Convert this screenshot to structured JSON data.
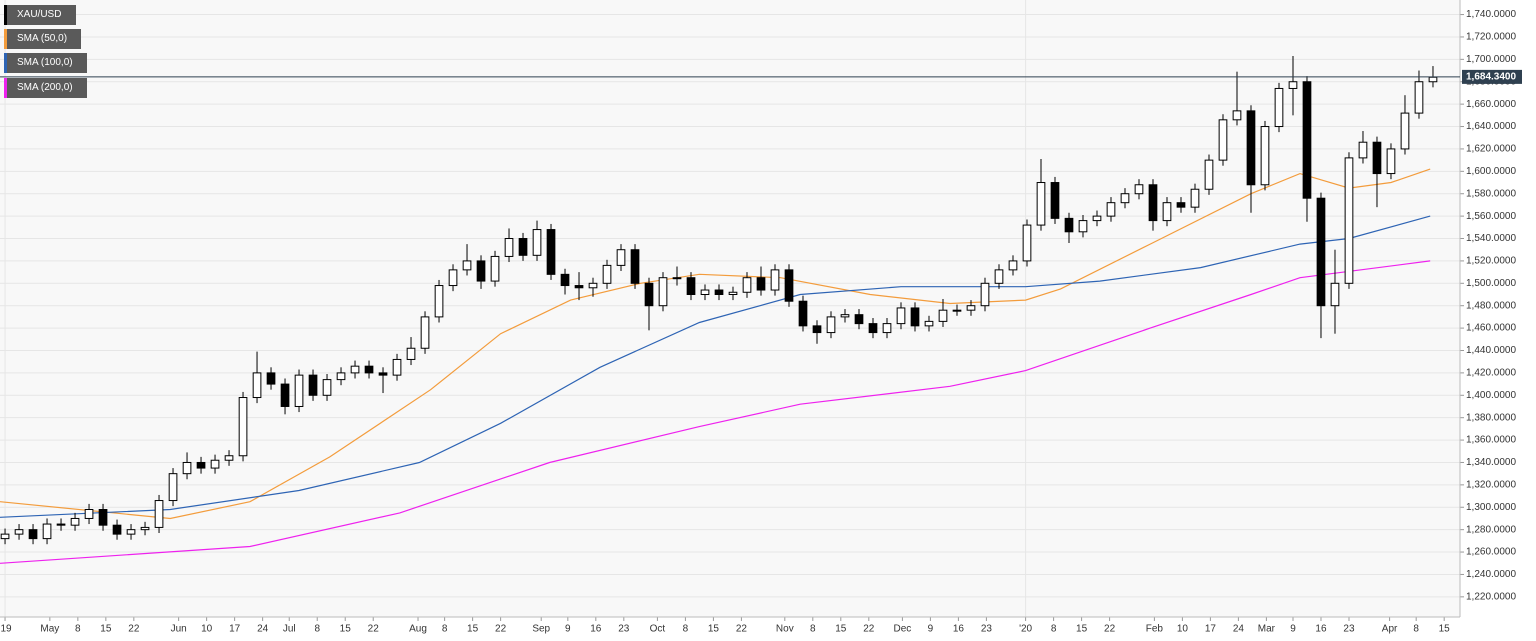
{
  "chart_data": {
    "type": "candlestick",
    "name": "XAU/USD",
    "up_color": "#ffffff",
    "down_color": "#000000",
    "xlim": [
      -0.36,
      103.93
    ],
    "xticks": [
      {
        "value": 0,
        "label": "'19"
      },
      {
        "value": 3.2,
        "label": "May"
      },
      {
        "value": 5.2,
        "label": "8"
      },
      {
        "value": 7.2,
        "label": "15"
      },
      {
        "value": 9.2,
        "label": "22"
      },
      {
        "value": 12.4,
        "label": "Jun"
      },
      {
        "value": 14.4,
        "label": "10"
      },
      {
        "value": 16.4,
        "label": "17"
      },
      {
        "value": 18.4,
        "label": "24"
      },
      {
        "value": 20.3,
        "label": "Jul"
      },
      {
        "value": 22.3,
        "label": "8"
      },
      {
        "value": 24.3,
        "label": "15"
      },
      {
        "value": 26.3,
        "label": "22"
      },
      {
        "value": 29.5,
        "label": "Aug"
      },
      {
        "value": 31.4,
        "label": "8"
      },
      {
        "value": 33.4,
        "label": "15"
      },
      {
        "value": 35.4,
        "label": "22"
      },
      {
        "value": 38.3,
        "label": "Sep"
      },
      {
        "value": 40.2,
        "label": "9"
      },
      {
        "value": 42.2,
        "label": "16"
      },
      {
        "value": 44.2,
        "label": "23"
      },
      {
        "value": 46.6,
        "label": "Oct"
      },
      {
        "value": 48.6,
        "label": "8"
      },
      {
        "value": 50.6,
        "label": "15"
      },
      {
        "value": 52.6,
        "label": "22"
      },
      {
        "value": 55.7,
        "label": "Nov"
      },
      {
        "value": 57.7,
        "label": "8"
      },
      {
        "value": 59.7,
        "label": "15"
      },
      {
        "value": 61.7,
        "label": "22"
      },
      {
        "value": 64.1,
        "label": "Dec"
      },
      {
        "value": 66.1,
        "label": "9"
      },
      {
        "value": 68.1,
        "label": "16"
      },
      {
        "value": 70.1,
        "label": "23"
      },
      {
        "value": 72.9,
        "label": "'20"
      },
      {
        "value": 74.9,
        "label": "8"
      },
      {
        "value": 76.9,
        "label": "15"
      },
      {
        "value": 78.9,
        "label": "22"
      },
      {
        "value": 82.1,
        "label": "Feb"
      },
      {
        "value": 84.1,
        "label": "10"
      },
      {
        "value": 86.1,
        "label": "17"
      },
      {
        "value": 88.1,
        "label": "24"
      },
      {
        "value": 90.1,
        "label": "Mar"
      },
      {
        "value": 92,
        "label": "9"
      },
      {
        "value": 94,
        "label": "16"
      },
      {
        "value": 96,
        "label": "23"
      },
      {
        "value": 98.9,
        "label": "Apr"
      },
      {
        "value": 100.8,
        "label": "8"
      },
      {
        "value": 102.8,
        "label": "15"
      }
    ],
    "ylim": [
      1202,
      1753
    ],
    "yticks": [
      {
        "value": 1220,
        "label": "1,220.0000"
      },
      {
        "value": 1240,
        "label": "1,240.0000"
      },
      {
        "value": 1260,
        "label": "1,260.0000"
      },
      {
        "value": 1280,
        "label": "1,280.0000"
      },
      {
        "value": 1300,
        "label": "1,300.0000"
      },
      {
        "value": 1320,
        "label": "1,320.0000"
      },
      {
        "value": 1340,
        "label": "1,340.0000"
      },
      {
        "value": 1360,
        "label": "1,360.0000"
      },
      {
        "value": 1380,
        "label": "1,380.0000"
      },
      {
        "value": 1400,
        "label": "1,400.0000"
      },
      {
        "value": 1420,
        "label": "1,420.0000"
      },
      {
        "value": 1440,
        "label": "1,440.0000"
      },
      {
        "value": 1460,
        "label": "1,460.0000"
      },
      {
        "value": 1480,
        "label": "1,480.0000"
      },
      {
        "value": 1500,
        "label": "1,500.0000"
      },
      {
        "value": 1520,
        "label": "1,520.0000"
      },
      {
        "value": 1540,
        "label": "1,540.0000"
      },
      {
        "value": 1560,
        "label": "1,560.0000"
      },
      {
        "value": 1580,
        "label": "1,580.0000"
      },
      {
        "value": 1600,
        "label": "1,600.0000"
      },
      {
        "value": 1620,
        "label": "1,620.0000"
      },
      {
        "value": 1640,
        "label": "1,640.0000"
      },
      {
        "value": 1660,
        "label": "1,660.0000"
      },
      {
        "value": 1680,
        "label": "1,680.0000"
      },
      {
        "value": 1700,
        "label": "1,700.0000"
      },
      {
        "value": 1720,
        "label": "1,720.0000"
      },
      {
        "value": 1740,
        "label": "1,740.0000"
      }
    ],
    "grid": true,
    "open": [
      1272,
      1276,
      1280,
      1272,
      1285,
      1284,
      1290,
      1298,
      1284,
      1276,
      1280,
      1282,
      1306,
      1330,
      1340,
      1335,
      1342,
      1346,
      1398,
      1420,
      1410,
      1390,
      1418,
      1400,
      1414,
      1420,
      1426,
      1420,
      1418,
      1432,
      1442,
      1470,
      1498,
      1512,
      1520,
      1502,
      1524,
      1540,
      1525,
      1548,
      1508,
      1498,
      1496,
      1500,
      1516,
      1530,
      1500,
      1480,
      1505,
      1505,
      1490,
      1494,
      1490,
      1492,
      1505,
      1494,
      1512,
      1484,
      1462,
      1456,
      1470,
      1472,
      1464,
      1456,
      1464,
      1478,
      1462,
      1466,
      1476,
      1476,
      1480,
      1500,
      1512,
      1520,
      1552,
      1590,
      1558,
      1546,
      1556,
      1560,
      1572,
      1580,
      1588,
      1556,
      1572,
      1568,
      1584,
      1610,
      1646,
      1654,
      1588,
      1640,
      1674,
      1680,
      1576,
      1480,
      1500,
      1612,
      1626,
      1598,
      1620,
      1652,
      1680
    ],
    "high": [
      1281,
      1285,
      1285,
      1290,
      1290,
      1295,
      1303,
      1303,
      1289,
      1285,
      1287,
      1311,
      1335,
      1349,
      1345,
      1347,
      1351,
      1403,
      1439,
      1425,
      1415,
      1423,
      1423,
      1419,
      1425,
      1431,
      1431,
      1425,
      1437,
      1452,
      1475,
      1503,
      1517,
      1535,
      1525,
      1529,
      1549,
      1545,
      1556,
      1553,
      1513,
      1510,
      1505,
      1521,
      1535,
      1535,
      1505,
      1510,
      1515,
      1510,
      1499,
      1499,
      1497,
      1510,
      1515,
      1517,
      1517,
      1489,
      1467,
      1475,
      1477,
      1477,
      1469,
      1469,
      1483,
      1483,
      1471,
      1486,
      1481,
      1485,
      1505,
      1517,
      1525,
      1557,
      1611,
      1595,
      1563,
      1561,
      1565,
      1577,
      1585,
      1593,
      1593,
      1577,
      1577,
      1589,
      1615,
      1651,
      1689,
      1659,
      1645,
      1679,
      1703,
      1685,
      1581,
      1530,
      1617,
      1636,
      1631,
      1625,
      1668,
      1690,
      1694
    ],
    "low": [
      1267,
      1271,
      1267,
      1267,
      1279,
      1279,
      1285,
      1279,
      1271,
      1271,
      1275,
      1277,
      1301,
      1325,
      1330,
      1330,
      1337,
      1341,
      1393,
      1405,
      1383,
      1385,
      1395,
      1395,
      1409,
      1415,
      1415,
      1402,
      1413,
      1427,
      1437,
      1465,
      1493,
      1507,
      1495,
      1497,
      1519,
      1520,
      1520,
      1503,
      1490,
      1485,
      1488,
      1495,
      1511,
      1495,
      1458,
      1475,
      1498,
      1485,
      1485,
      1485,
      1485,
      1487,
      1489,
      1489,
      1479,
      1457,
      1446,
      1451,
      1465,
      1459,
      1451,
      1451,
      1459,
      1457,
      1457,
      1461,
      1471,
      1471,
      1475,
      1495,
      1507,
      1515,
      1547,
      1553,
      1536,
      1541,
      1551,
      1555,
      1567,
      1575,
      1547,
      1551,
      1563,
      1563,
      1579,
      1605,
      1641,
      1563,
      1583,
      1635,
      1650,
      1555,
      1451,
      1455,
      1495,
      1607,
      1568,
      1593,
      1615,
      1647,
      1675
    ],
    "close": [
      1276,
      1280,
      1272,
      1285,
      1284,
      1290,
      1298,
      1284,
      1276,
      1280,
      1282,
      1306,
      1330,
      1340,
      1335,
      1342,
      1346,
      1398,
      1420,
      1410,
      1390,
      1418,
      1400,
      1414,
      1420,
      1426,
      1420,
      1418,
      1432,
      1442,
      1470,
      1498,
      1512,
      1520,
      1502,
      1524,
      1540,
      1525,
      1548,
      1508,
      1498,
      1496,
      1500,
      1516,
      1530,
      1500,
      1480,
      1505,
      1505,
      1490,
      1494,
      1490,
      1492,
      1505,
      1494,
      1512,
      1484,
      1462,
      1456,
      1470,
      1472,
      1464,
      1456,
      1464,
      1478,
      1462,
      1466,
      1476,
      1476,
      1480,
      1500,
      1512,
      1520,
      1552,
      1590,
      1558,
      1546,
      1556,
      1560,
      1572,
      1580,
      1588,
      1556,
      1572,
      1568,
      1584,
      1610,
      1646,
      1654,
      1588,
      1640,
      1674,
      1680,
      1576,
      1480,
      1500,
      1612,
      1626,
      1598,
      1620,
      1652,
      1680,
      1684
    ],
    "overlays": [
      {
        "name": "SMA (50,0)",
        "color": "#f39c3c",
        "x": [
          -0.36,
          11.8,
          17.5,
          23.2,
          30.4,
          35.4,
          40.4,
          45.4,
          49.6,
          55.4,
          61.8,
          67.5,
          72.9,
          75.4,
          81.8,
          89,
          92.5,
          96,
          99,
          101.8
        ],
        "values": [
          1305,
          1290,
          1305,
          1345,
          1405,
          1455,
          1485,
          1500,
          1508,
          1505,
          1490,
          1482,
          1485,
          1495,
          1535,
          1580,
          1598,
          1585,
          1590,
          1602
        ]
      },
      {
        "name": "SMA (100,0)",
        "color": "#2e64b4",
        "x": [
          -0.36,
          11.8,
          21,
          29.6,
          35.4,
          42.5,
          49.6,
          56.8,
          64,
          72.9,
          78.2,
          85.4,
          92.5,
          96,
          101.8
        ],
        "values": [
          1291,
          1298,
          1315,
          1340,
          1375,
          1425,
          1465,
          1490,
          1497,
          1497,
          1502,
          1514,
          1535,
          1540,
          1560
        ]
      },
      {
        "name": "SMA (200,0)",
        "color": "#ee22ee",
        "x": [
          -0.36,
          17.5,
          28.2,
          38.9,
          49.6,
          56.8,
          67.5,
          72.9,
          81.8,
          89,
          92.5,
          101.8
        ],
        "values": [
          1250,
          1265,
          1295,
          1340,
          1372,
          1392,
          1408,
          1422,
          1460,
          1490,
          1505,
          1520
        ]
      }
    ],
    "last_price": {
      "value": 1684.34,
      "label": "1,684.3400",
      "color": "#2f4050"
    }
  }
}
